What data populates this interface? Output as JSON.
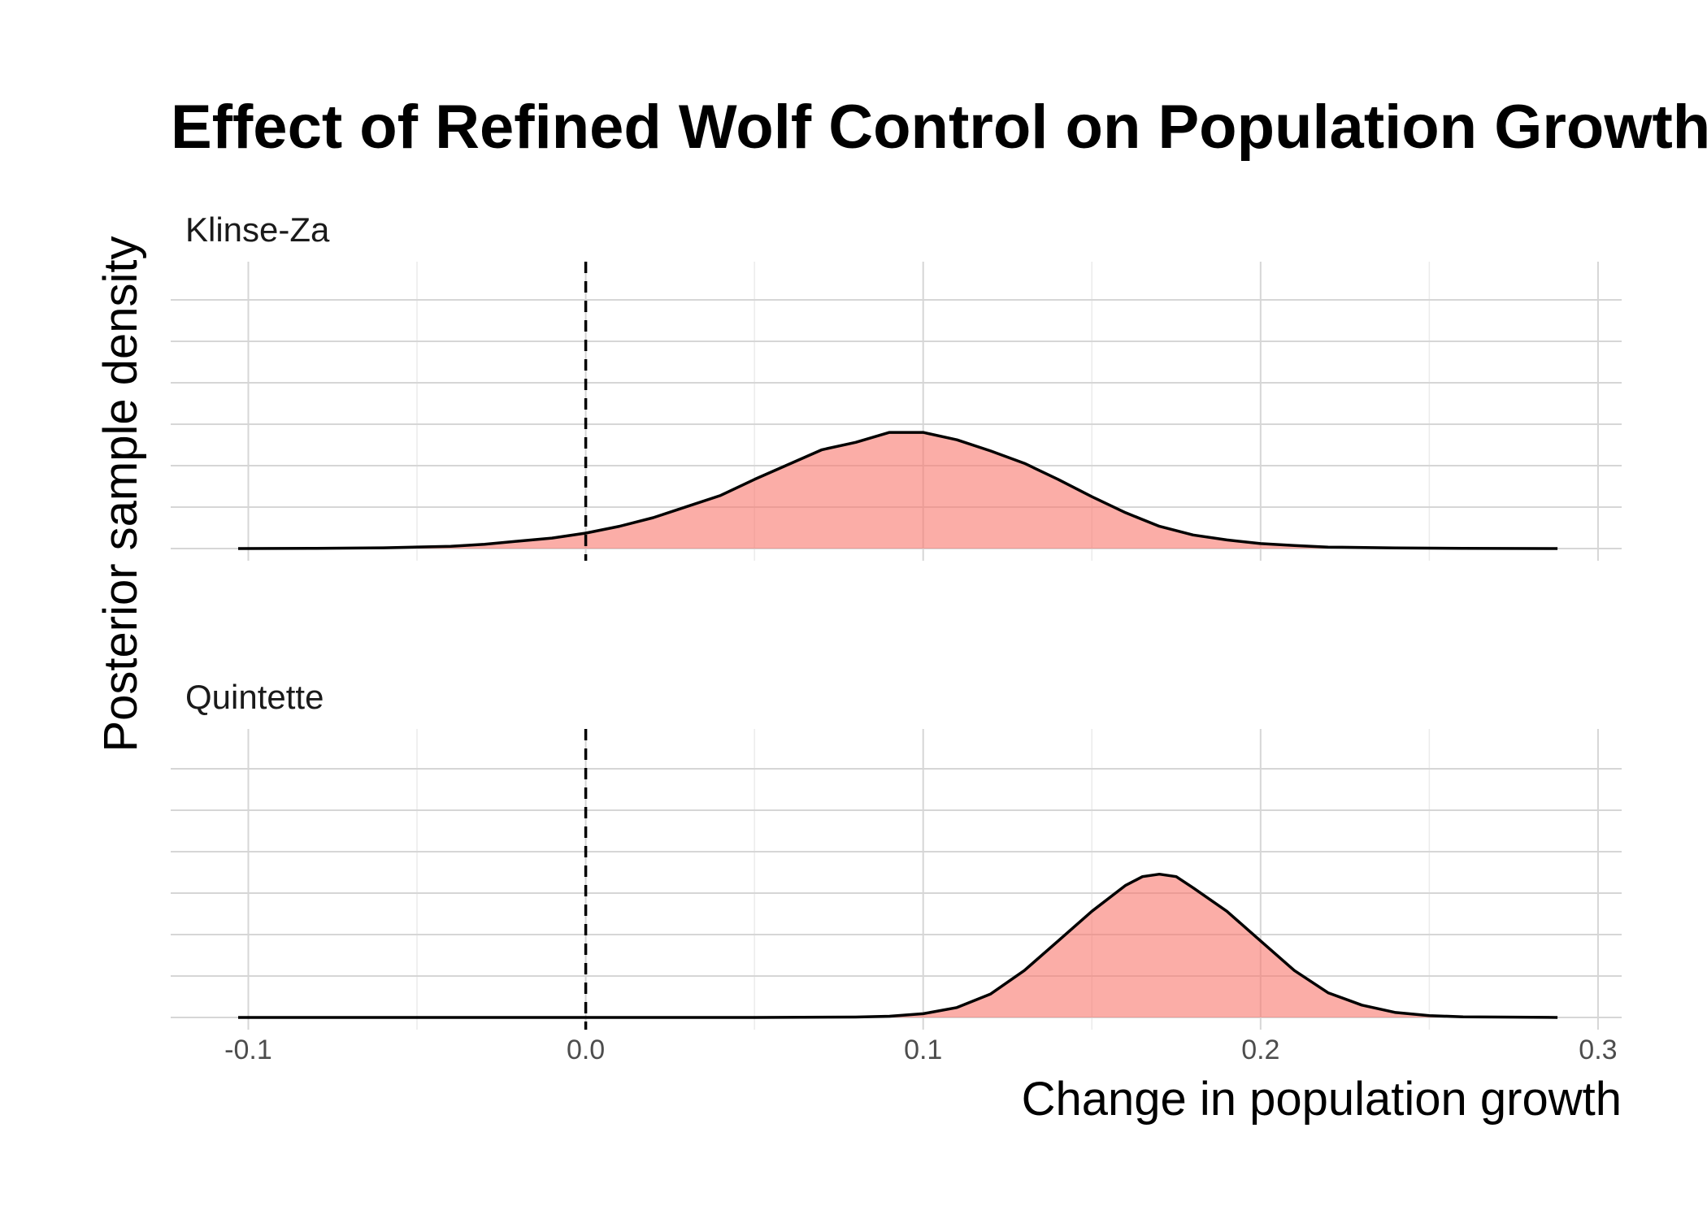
{
  "chart_data": {
    "type": "area",
    "title": "Effect of Refined Wolf Control on Population Growth",
    "xlabel": "Change in population growth",
    "ylabel": "Posterior sample density",
    "x_ticks": [
      -0.1,
      0.0,
      0.1,
      0.2,
      0.3
    ],
    "x_tick_labels": [
      "-0.1",
      "0.0",
      "0.1",
      "0.2",
      "0.3"
    ],
    "xlim": [
      -0.123,
      0.307
    ],
    "ylim": [
      0,
      1.16
    ],
    "reference_line_x": 0.0,
    "grid": true,
    "fill_color": "#f8766d",
    "panels": [
      {
        "name": "Klinse-Za",
        "x": [
          -0.103,
          -0.08,
          -0.06,
          -0.04,
          -0.03,
          -0.02,
          -0.01,
          0.0,
          0.01,
          0.02,
          0.03,
          0.04,
          0.05,
          0.06,
          0.07,
          0.08,
          0.09,
          0.1,
          0.11,
          0.12,
          0.13,
          0.14,
          0.15,
          0.16,
          0.17,
          0.18,
          0.19,
          0.2,
          0.21,
          0.22,
          0.24,
          0.26,
          0.288
        ],
        "y": [
          0.0,
          0.002,
          0.006,
          0.018,
          0.035,
          0.06,
          0.085,
          0.125,
          0.18,
          0.25,
          0.34,
          0.43,
          0.56,
          0.68,
          0.8,
          0.86,
          0.94,
          0.94,
          0.88,
          0.79,
          0.69,
          0.56,
          0.42,
          0.29,
          0.18,
          0.11,
          0.07,
          0.04,
          0.025,
          0.012,
          0.005,
          0.002,
          0.0
        ]
      },
      {
        "name": "Quintette",
        "x": [
          -0.103,
          -0.05,
          0.0,
          0.05,
          0.08,
          0.09,
          0.1,
          0.11,
          0.12,
          0.13,
          0.14,
          0.15,
          0.16,
          0.165,
          0.17,
          0.175,
          0.18,
          0.19,
          0.2,
          0.21,
          0.22,
          0.23,
          0.24,
          0.25,
          0.26,
          0.288
        ],
        "y": [
          0.0,
          0.0,
          0.0,
          0.0,
          0.003,
          0.01,
          0.03,
          0.08,
          0.19,
          0.38,
          0.62,
          0.86,
          1.07,
          1.14,
          1.16,
          1.14,
          1.05,
          0.86,
          0.62,
          0.38,
          0.2,
          0.1,
          0.04,
          0.015,
          0.005,
          0.0
        ]
      }
    ]
  }
}
